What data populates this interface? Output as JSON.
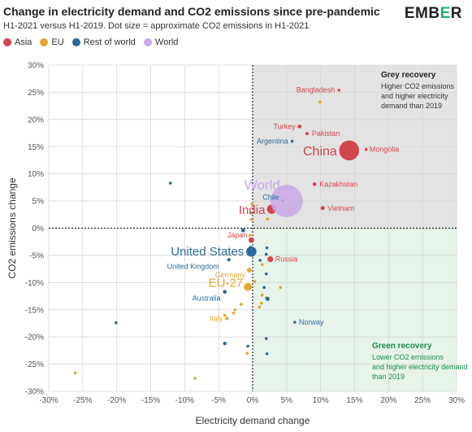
{
  "title": "Change in electricity demand and CO2 emissions since pre-pandemic",
  "subtitle": "H1-2021 versus H1-2019. Dot size = approximate CO2 emissions in H1-2021",
  "logo": {
    "text_main": "EMB",
    "text_accent": "E",
    "text_end": "R"
  },
  "legend": [
    {
      "label": "Asia",
      "color": "#d1454d"
    },
    {
      "label": "EU",
      "color": "#e3a72f"
    },
    {
      "label": "Rest of world",
      "color": "#2b6a9b"
    },
    {
      "label": "World",
      "color": "#c9a8e6"
    }
  ],
  "quadrants": {
    "grey": {
      "title": "Grey recovery",
      "body": [
        "Higher CO2 emissions",
        "and higher electricity",
        "demand than 2019"
      ],
      "color": "#e3e3e3"
    },
    "green": {
      "title": "Green recovery",
      "body": [
        "Lower CO2 emissions",
        "and higher electricity demand",
        "than 2019"
      ],
      "color": "#e6f4ea"
    }
  },
  "chart_data": {
    "type": "scatter",
    "title": "Change in electricity demand and CO2 emissions since pre-pandemic",
    "subtitle": "H1-2021 versus H1-2019. Dot size = approximate CO2 emissions in H1-2021",
    "xlabel": "Electricity demand change",
    "ylabel": "CO2 emissions change",
    "xlim": [
      -0.3,
      0.3
    ],
    "ylim": [
      -0.3,
      0.3
    ],
    "xticks": [
      "-30%",
      "-25%",
      "-20%",
      "-15%",
      "-10%",
      "-5%",
      "0%",
      "5%",
      "10%",
      "15%",
      "20%",
      "25%",
      "30%"
    ],
    "yticks": [
      "30%",
      "25%",
      "20%",
      "15%",
      "10%",
      "5%",
      "0%",
      "-5%",
      "-10%",
      "-15%",
      "-20%",
      "-25%",
      "-30%"
    ],
    "grid": true,
    "legend_position": "top-left",
    "series_colors": {
      "Asia": "#d1454d",
      "EU": "#e3a72f",
      "Rest of world": "#2b6a9b",
      "World": "#c9a8e6"
    },
    "points": [
      {
        "name": "World",
        "group": "World",
        "x": 0.05,
        "y": 0.05,
        "size": 11,
        "label": "World",
        "label_size": "large"
      },
      {
        "name": "China",
        "group": "Asia",
        "x": 0.142,
        "y": 0.143,
        "size": 6.8,
        "label": "China",
        "label_size": "large"
      },
      {
        "name": "India",
        "group": "Asia",
        "x": 0.028,
        "y": 0.035,
        "size": 3.2,
        "label": "India",
        "label_size": "large"
      },
      {
        "name": "United States",
        "group": "Rest of world",
        "x": -0.002,
        "y": -0.043,
        "size": 3.5,
        "label": "United States",
        "label_size": "large"
      },
      {
        "name": "EU-27",
        "group": "EU",
        "x": -0.007,
        "y": -0.108,
        "size": 2.7,
        "label": "EU-27",
        "label_size": "large"
      },
      {
        "name": "Bangladesh",
        "group": "Asia",
        "x": 0.127,
        "y": 0.254,
        "size": 1,
        "label": "Bangladesh"
      },
      {
        "name": "Turkey",
        "group": "Asia",
        "x": 0.069,
        "y": 0.187,
        "size": 1.3,
        "label": "Turkey"
      },
      {
        "name": "Pakistan",
        "group": "Asia",
        "x": 0.08,
        "y": 0.174,
        "size": 1.1,
        "label": "Pakistan"
      },
      {
        "name": "Argentina",
        "group": "Rest of world",
        "x": 0.058,
        "y": 0.16,
        "size": 1,
        "label": "Argentina"
      },
      {
        "name": "Mongolia",
        "group": "Asia",
        "x": 0.167,
        "y": 0.145,
        "size": 1,
        "label": "Mongolia"
      },
      {
        "name": "Kazakhstan",
        "group": "Asia",
        "x": 0.091,
        "y": 0.081,
        "size": 1.3,
        "label": "Kazakhstan"
      },
      {
        "name": "Chile",
        "group": "Rest of world",
        "x": 0.044,
        "y": 0.051,
        "size": 1,
        "label": "Chile"
      },
      {
        "name": "Vietnam",
        "group": "Asia",
        "x": 0.103,
        "y": 0.037,
        "size": 1.4,
        "label": "Vietnam"
      },
      {
        "name": "Japan",
        "group": "Asia",
        "x": -0.002,
        "y": -0.022,
        "size": 1.9,
        "label": "Japan"
      },
      {
        "name": "United Kingdom",
        "group": "Rest of world",
        "x": -0.035,
        "y": -0.058,
        "size": 1.2,
        "label": "United Kingdom"
      },
      {
        "name": "Russia",
        "group": "Asia",
        "x": 0.026,
        "y": -0.057,
        "size": 2,
        "label": "Russia"
      },
      {
        "name": "Germany",
        "group": "EU",
        "x": -0.005,
        "y": -0.077,
        "size": 1.6,
        "label": "Germany"
      },
      {
        "name": "Australia",
        "group": "Rest of world",
        "x": -0.041,
        "y": -0.117,
        "size": 1.3,
        "label": "Australia"
      },
      {
        "name": "Italy",
        "group": "EU",
        "x": -0.038,
        "y": -0.166,
        "size": 1.2,
        "label": "Italy"
      },
      {
        "name": "Norway",
        "group": "Rest of world",
        "x": 0.062,
        "y": -0.173,
        "size": 1,
        "label": "Norway"
      },
      {
        "name": "",
        "group": "EU",
        "x": 0.099,
        "y": 0.232,
        "size": 1
      },
      {
        "name": "",
        "group": "Rest of world",
        "x": -0.121,
        "y": 0.083,
        "size": 1
      },
      {
        "name": "",
        "group": "EU",
        "x": -0.001,
        "y": 0.045,
        "size": 1
      },
      {
        "name": "",
        "group": "EU",
        "x": -0.003,
        "y": 0.028,
        "size": 1
      },
      {
        "name": "",
        "group": "EU",
        "x": -0.002,
        "y": 0.016,
        "size": 1
      },
      {
        "name": "",
        "group": "EU",
        "x": 0.022,
        "y": 0.017,
        "size": 1
      },
      {
        "name": "",
        "group": "Rest of world",
        "x": -0.014,
        "y": -0.004,
        "size": 1.4
      },
      {
        "name": "",
        "group": "EU",
        "x": -0.004,
        "y": -0.013,
        "size": 1
      },
      {
        "name": "",
        "group": "Rest of world",
        "x": -0.003,
        "y": -0.035,
        "size": 1
      },
      {
        "name": "",
        "group": "Rest of world",
        "x": 0.021,
        "y": -0.036,
        "size": 1
      },
      {
        "name": "",
        "group": "Rest of world",
        "x": 0.02,
        "y": -0.048,
        "size": 1
      },
      {
        "name": "",
        "group": "Rest of world",
        "x": 0.011,
        "y": -0.059,
        "size": 1
      },
      {
        "name": "",
        "group": "EU",
        "x": 0.014,
        "y": -0.067,
        "size": 1
      },
      {
        "name": "",
        "group": "Rest of world",
        "x": 0.02,
        "y": -0.084,
        "size": 1
      },
      {
        "name": "",
        "group": "EU",
        "x": 0.003,
        "y": -0.098,
        "size": 1
      },
      {
        "name": "",
        "group": "EU",
        "x": 0.041,
        "y": -0.109,
        "size": 1
      },
      {
        "name": "",
        "group": "Rest of world",
        "x": 0.017,
        "y": -0.109,
        "size": 1
      },
      {
        "name": "",
        "group": "EU",
        "x": 0.014,
        "y": -0.123,
        "size": 1
      },
      {
        "name": "",
        "group": "EU",
        "x": 0.02,
        "y": -0.128,
        "size": 1
      },
      {
        "name": "",
        "group": "Rest of world",
        "x": 0.022,
        "y": -0.13,
        "size": 1.4
      },
      {
        "name": "",
        "group": "EU",
        "x": 0.013,
        "y": -0.138,
        "size": 1
      },
      {
        "name": "",
        "group": "EU",
        "x": 0.01,
        "y": -0.145,
        "size": 1
      },
      {
        "name": "",
        "group": "EU",
        "x": -0.017,
        "y": -0.14,
        "size": 1
      },
      {
        "name": "",
        "group": "EU",
        "x": -0.026,
        "y": -0.15,
        "size": 1
      },
      {
        "name": "",
        "group": "EU",
        "x": -0.028,
        "y": -0.156,
        "size": 1
      },
      {
        "name": "",
        "group": "EU",
        "x": -0.041,
        "y": -0.16,
        "size": 1
      },
      {
        "name": "",
        "group": "Rest of world",
        "x": -0.201,
        "y": -0.174,
        "size": 1
      },
      {
        "name": "",
        "group": "Rest of world",
        "x": 0.02,
        "y": -0.203,
        "size": 1
      },
      {
        "name": "",
        "group": "Rest of world",
        "x": -0.041,
        "y": -0.212,
        "size": 1.2
      },
      {
        "name": "",
        "group": "Rest of world",
        "x": -0.007,
        "y": -0.217,
        "size": 1
      },
      {
        "name": "",
        "group": "EU",
        "x": -0.008,
        "y": -0.23,
        "size": 1
      },
      {
        "name": "",
        "group": "Rest of world",
        "x": 0.021,
        "y": -0.231,
        "size": 1
      },
      {
        "name": "",
        "group": "EU",
        "x": -0.261,
        "y": -0.266,
        "size": 1
      },
      {
        "name": "",
        "group": "EU",
        "x": -0.085,
        "y": -0.276,
        "size": 1
      }
    ]
  }
}
